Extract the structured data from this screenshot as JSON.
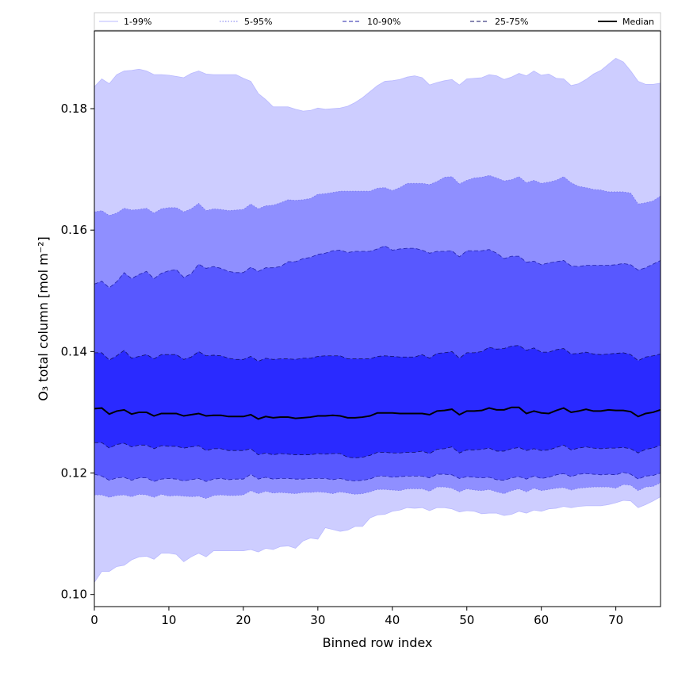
{
  "chart_data": {
    "type": "area",
    "title": "",
    "xlabel": "Binned row index",
    "ylabel": "O₃ total column [mol m⁻²]",
    "xlim": [
      0,
      76
    ],
    "ylim": [
      0.098,
      0.1928
    ],
    "xticks": [
      0,
      10,
      20,
      30,
      40,
      50,
      60,
      70
    ],
    "yticks": [
      0.1,
      0.12,
      0.14,
      0.16,
      0.18
    ],
    "ytick_labels": [
      "0.10",
      "0.12",
      "0.14",
      "0.16",
      "0.18"
    ],
    "legend_position": "top",
    "x": [
      0,
      1,
      2,
      3,
      4,
      5,
      6,
      7,
      8,
      9,
      10,
      11,
      12,
      13,
      14,
      15,
      16,
      17,
      18,
      19,
      20,
      21,
      22,
      23,
      24,
      25,
      26,
      27,
      28,
      29,
      30,
      31,
      32,
      33,
      34,
      35,
      36,
      37,
      38,
      39,
      40,
      41,
      42,
      43,
      44,
      45,
      46,
      47,
      48,
      49,
      50,
      51,
      52,
      53,
      54,
      55,
      56,
      57,
      58,
      59,
      60,
      61,
      62,
      63,
      64,
      65,
      66,
      67,
      68,
      69,
      70,
      71,
      72,
      73,
      74,
      75,
      76
    ],
    "median": [
      0.1306,
      0.1307,
      0.1297,
      0.1302,
      0.1304,
      0.1297,
      0.13,
      0.13,
      0.1294,
      0.1298,
      0.1298,
      0.1298,
      0.1294,
      0.1296,
      0.1298,
      0.1294,
      0.1295,
      0.1295,
      0.1293,
      0.1293,
      0.1293,
      0.1296,
      0.1289,
      0.1293,
      0.1291,
      0.1292,
      0.1292,
      0.129,
      0.1291,
      0.1292,
      0.1294,
      0.1294,
      0.1295,
      0.1294,
      0.1291,
      0.1291,
      0.1292,
      0.1294,
      0.1299,
      0.1299,
      0.1299,
      0.1298,
      0.1298,
      0.1298,
      0.1298,
      0.1296,
      0.1302,
      0.1303,
      0.1305,
      0.1296,
      0.1302,
      0.1302,
      0.1303,
      0.1307,
      0.1304,
      0.1304,
      0.1308,
      0.1308,
      0.1298,
      0.1302,
      0.1299,
      0.1298,
      0.1303,
      0.1307,
      0.13,
      0.1302,
      0.1305,
      0.1302,
      0.1302,
      0.1304,
      0.1303,
      0.1303,
      0.1301,
      0.1293,
      0.1298,
      0.13,
      0.1304
    ],
    "series": [
      {
        "name": "1-99%",
        "fill": "#cdcdff",
        "line_style": "solid",
        "line_color": "#b9b9ff",
        "upper": [
          0.1836,
          0.1849,
          0.1841,
          0.1856,
          0.1862,
          0.1863,
          0.1865,
          0.1862,
          0.1856,
          0.1856,
          0.1855,
          0.1853,
          0.1851,
          0.1858,
          0.1862,
          0.1857,
          0.1856,
          0.1856,
          0.1856,
          0.1856,
          0.185,
          0.1845,
          0.1825,
          0.1815,
          0.1803,
          0.1803,
          0.1803,
          0.1799,
          0.1796,
          0.1797,
          0.1801,
          0.1799,
          0.18,
          0.1801,
          0.1804,
          0.181,
          0.1818,
          0.1828,
          0.1838,
          0.1845,
          0.1846,
          0.1848,
          0.1852,
          0.1854,
          0.1851,
          0.1839,
          0.1843,
          0.1846,
          0.1848,
          0.1839,
          0.1849,
          0.185,
          0.1851,
          0.1856,
          0.1854,
          0.1848,
          0.1852,
          0.1858,
          0.1854,
          0.1862,
          0.1855,
          0.1857,
          0.185,
          0.1849,
          0.1838,
          0.1841,
          0.1848,
          0.1857,
          0.1863,
          0.1873,
          0.1883,
          0.1877,
          0.1862,
          0.1845,
          0.184,
          0.184,
          0.1842
        ],
        "lower": [
          0.102,
          0.1038,
          0.1038,
          0.1046,
          0.1048,
          0.1057,
          0.1062,
          0.1063,
          0.1058,
          0.1068,
          0.1068,
          0.1066,
          0.1054,
          0.1062,
          0.1068,
          0.1062,
          0.1072,
          0.1072,
          0.1072,
          0.1072,
          0.1072,
          0.1074,
          0.107,
          0.1076,
          0.1074,
          0.1079,
          0.108,
          0.1076,
          0.1088,
          0.1093,
          0.1091,
          0.111,
          0.1107,
          0.1104,
          0.1106,
          0.1112,
          0.1112,
          0.1126,
          0.1131,
          0.1132,
          0.1137,
          0.1139,
          0.1143,
          0.1142,
          0.1143,
          0.1138,
          0.1143,
          0.1143,
          0.1141,
          0.1136,
          0.1138,
          0.1137,
          0.1133,
          0.1134,
          0.1134,
          0.113,
          0.1132,
          0.1137,
          0.1134,
          0.1139,
          0.1137,
          0.1141,
          0.1142,
          0.1145,
          0.1143,
          0.1145,
          0.1146,
          0.1146,
          0.1146,
          0.1148,
          0.1151,
          0.1155,
          0.1154,
          0.1143,
          0.1148,
          0.1154,
          0.1161
        ]
      },
      {
        "name": "5-95%",
        "fill": "#8f8fff",
        "line_style": "dotted",
        "line_color": "#7777ee",
        "upper": [
          0.163,
          0.1632,
          0.1624,
          0.1628,
          0.1636,
          0.1633,
          0.1634,
          0.1636,
          0.1628,
          0.1635,
          0.1637,
          0.1637,
          0.163,
          0.1635,
          0.1644,
          0.1632,
          0.1635,
          0.1634,
          0.1632,
          0.1633,
          0.1634,
          0.1643,
          0.1635,
          0.164,
          0.1641,
          0.1645,
          0.165,
          0.1649,
          0.165,
          0.1652,
          0.1659,
          0.166,
          0.1662,
          0.1664,
          0.1664,
          0.1664,
          0.1664,
          0.1664,
          0.1669,
          0.167,
          0.1665,
          0.167,
          0.1677,
          0.1677,
          0.1677,
          0.1675,
          0.168,
          0.1687,
          0.1688,
          0.1676,
          0.1682,
          0.1686,
          0.1687,
          0.169,
          0.1686,
          0.1681,
          0.1683,
          0.1688,
          0.1678,
          0.1682,
          0.1677,
          0.1679,
          0.1682,
          0.1688,
          0.1678,
          0.1672,
          0.167,
          0.1667,
          0.1666,
          0.1663,
          0.1663,
          0.1663,
          0.1661,
          0.1643,
          0.1645,
          0.1648,
          0.1656
        ],
        "lower": [
          0.1164,
          0.1164,
          0.116,
          0.1163,
          0.1164,
          0.1161,
          0.1165,
          0.1164,
          0.116,
          0.1165,
          0.1162,
          0.1163,
          0.1162,
          0.1161,
          0.1162,
          0.1158,
          0.1163,
          0.1164,
          0.1163,
          0.1163,
          0.1164,
          0.1171,
          0.1166,
          0.117,
          0.1167,
          0.1168,
          0.1167,
          0.1166,
          0.1168,
          0.1168,
          0.1169,
          0.1168,
          0.1166,
          0.1169,
          0.1167,
          0.1165,
          0.1166,
          0.1169,
          0.1173,
          0.1173,
          0.1172,
          0.1171,
          0.1174,
          0.1174,
          0.1174,
          0.117,
          0.1177,
          0.1177,
          0.1175,
          0.1169,
          0.1174,
          0.1172,
          0.1171,
          0.1173,
          0.1169,
          0.1166,
          0.1171,
          0.1174,
          0.1169,
          0.1175,
          0.1171,
          0.1173,
          0.1175,
          0.1176,
          0.1172,
          0.1175,
          0.1176,
          0.1177,
          0.1177,
          0.1177,
          0.1175,
          0.1181,
          0.118,
          0.1171,
          0.1177,
          0.1178,
          0.1184
        ]
      },
      {
        "name": "10-90%",
        "fill": "#5858ff",
        "line_style": "dashed",
        "line_color": "#2222aa",
        "upper": [
          0.1511,
          0.1516,
          0.1505,
          0.1515,
          0.153,
          0.152,
          0.1527,
          0.1532,
          0.152,
          0.1529,
          0.1533,
          0.1535,
          0.1522,
          0.1528,
          0.1544,
          0.1537,
          0.154,
          0.1537,
          0.1532,
          0.153,
          0.153,
          0.1539,
          0.1532,
          0.1538,
          0.1538,
          0.154,
          0.1548,
          0.1548,
          0.1553,
          0.1555,
          0.156,
          0.1562,
          0.1566,
          0.1567,
          0.1563,
          0.1565,
          0.1565,
          0.1565,
          0.1569,
          0.1574,
          0.1567,
          0.1569,
          0.157,
          0.157,
          0.1567,
          0.1562,
          0.1565,
          0.1565,
          0.1566,
          0.1556,
          0.1566,
          0.1566,
          0.1566,
          0.1568,
          0.1562,
          0.1553,
          0.1557,
          0.1557,
          0.1547,
          0.1549,
          0.1543,
          0.1546,
          0.1548,
          0.155,
          0.1541,
          0.154,
          0.1542,
          0.1542,
          0.1542,
          0.1542,
          0.1543,
          0.1545,
          0.1543,
          0.1534,
          0.1538,
          0.1544,
          0.155
        ],
        "lower": [
          0.1198,
          0.1195,
          0.1188,
          0.1192,
          0.1193,
          0.1188,
          0.1192,
          0.1192,
          0.1186,
          0.119,
          0.1191,
          0.119,
          0.1187,
          0.1189,
          0.1191,
          0.1186,
          0.119,
          0.1191,
          0.1189,
          0.119,
          0.119,
          0.1198,
          0.119,
          0.1193,
          0.119,
          0.1191,
          0.1191,
          0.119,
          0.119,
          0.1191,
          0.1191,
          0.1191,
          0.1189,
          0.1191,
          0.1188,
          0.1187,
          0.1188,
          0.119,
          0.1195,
          0.1195,
          0.1193,
          0.1194,
          0.1195,
          0.1195,
          0.1195,
          0.1192,
          0.1198,
          0.1198,
          0.1197,
          0.1191,
          0.1194,
          0.1193,
          0.1192,
          0.1193,
          0.1189,
          0.1188,
          0.1192,
          0.1194,
          0.119,
          0.1195,
          0.1191,
          0.1193,
          0.1197,
          0.1199,
          0.1194,
          0.1198,
          0.1199,
          0.1198,
          0.1197,
          0.1198,
          0.1197,
          0.1201,
          0.1198,
          0.119,
          0.1195,
          0.1196,
          0.12
        ]
      },
      {
        "name": "25-75%",
        "fill": "#2a2aff",
        "line_style": "dashed",
        "line_color": "#111166",
        "upper": [
          0.1398,
          0.1398,
          0.1386,
          0.1393,
          0.1402,
          0.1389,
          0.1392,
          0.1395,
          0.1388,
          0.1395,
          0.1395,
          0.1395,
          0.1387,
          0.1391,
          0.14,
          0.1393,
          0.1394,
          0.1393,
          0.1389,
          0.1387,
          0.1387,
          0.1392,
          0.1384,
          0.1389,
          0.1387,
          0.1388,
          0.1388,
          0.1387,
          0.1389,
          0.1389,
          0.1392,
          0.1393,
          0.1393,
          0.1393,
          0.1388,
          0.1388,
          0.1388,
          0.1388,
          0.1392,
          0.1393,
          0.1392,
          0.1391,
          0.1391,
          0.1391,
          0.1395,
          0.1389,
          0.1397,
          0.1398,
          0.14,
          0.1389,
          0.1398,
          0.1398,
          0.14,
          0.1407,
          0.1404,
          0.1405,
          0.1409,
          0.141,
          0.1402,
          0.1406,
          0.1399,
          0.1399,
          0.1403,
          0.1405,
          0.1396,
          0.1397,
          0.1399,
          0.1396,
          0.1395,
          0.1396,
          0.1397,
          0.1398,
          0.1395,
          0.1385,
          0.1391,
          0.1393,
          0.1396
        ],
        "lower": [
          0.125,
          0.125,
          0.1241,
          0.1247,
          0.1249,
          0.1243,
          0.1246,
          0.1246,
          0.124,
          0.1245,
          0.1244,
          0.1244,
          0.1241,
          0.1243,
          0.1245,
          0.1237,
          0.124,
          0.124,
          0.1237,
          0.1237,
          0.1237,
          0.124,
          0.123,
          0.1233,
          0.123,
          0.1232,
          0.1231,
          0.123,
          0.123,
          0.123,
          0.1232,
          0.1231,
          0.1232,
          0.1232,
          0.1226,
          0.1225,
          0.1226,
          0.1229,
          0.1234,
          0.1234,
          0.1233,
          0.1233,
          0.1234,
          0.1234,
          0.1236,
          0.1232,
          0.1239,
          0.124,
          0.1243,
          0.1233,
          0.1238,
          0.1238,
          0.1239,
          0.1241,
          0.1236,
          0.1236,
          0.124,
          0.1242,
          0.1237,
          0.124,
          0.1237,
          0.1238,
          0.1242,
          0.1246,
          0.1238,
          0.1241,
          0.1243,
          0.1241,
          0.124,
          0.1241,
          0.1241,
          0.1242,
          0.124,
          0.1233,
          0.1239,
          0.1241,
          0.1246
        ]
      }
    ],
    "median_style": {
      "name": "Median",
      "line_color": "#000000",
      "line_style": "solid"
    }
  }
}
